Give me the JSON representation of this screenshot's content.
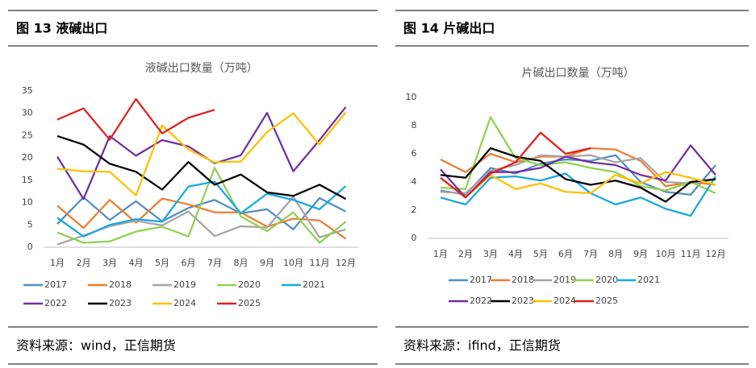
{
  "chart_data": [
    {
      "type": "line",
      "figure_title": "图 13  液碱出口",
      "title": "液碱出口数量（万吨）",
      "source": "资料来源：wind，正信期货",
      "categories": [
        "1月",
        "2月",
        "3月",
        "4月",
        "5月",
        "6月",
        "7月",
        "8月",
        "9月",
        "10月",
        "11月",
        "12月"
      ],
      "ylim": [
        0,
        35
      ],
      "yticks": [
        0,
        5,
        10,
        15,
        20,
        25,
        30,
        35
      ],
      "grid": false,
      "series": [
        {
          "name": "2017",
          "color": "#4f8fc0",
          "values": [
            5.2,
            11.2,
            6.1,
            10.3,
            5.8,
            8.8,
            10.6,
            7.6,
            8.5,
            4,
            11,
            8
          ]
        },
        {
          "name": "2018",
          "color": "#ed7d31",
          "values": [
            9.3,
            4.3,
            10.6,
            5.5,
            10.9,
            9.6,
            7.8,
            7.8,
            4.6,
            6.4,
            6,
            1.9
          ]
        },
        {
          "name": "2019",
          "color": "#a5a5a5",
          "values": [
            0.6,
            2.6,
            4.7,
            5.9,
            4.9,
            8,
            2.5,
            4.7,
            4.4,
            11.3,
            2.2,
            4
          ]
        },
        {
          "name": "2020",
          "color": "#92d050",
          "values": [
            3.3,
            1,
            1.3,
            3.5,
            4.6,
            2.4,
            17.8,
            6.9,
            3.6,
            7.8,
            1,
            5.7
          ]
        },
        {
          "name": "2021",
          "color": "#17a9e1",
          "values": [
            6.6,
            2.4,
            5,
            6.3,
            5.7,
            13.6,
            14.7,
            7.6,
            12,
            10.6,
            8.5,
            13.7
          ]
        },
        {
          "name": "2022",
          "color": "#7030a0",
          "values": [
            20.3,
            10.8,
            24.9,
            20.5,
            24,
            22.6,
            18.8,
            20.6,
            30.1,
            17,
            24,
            31.4
          ]
        },
        {
          "name": "2023",
          "color": "#000000",
          "values": [
            24.9,
            23,
            18.7,
            16.9,
            12.9,
            19.1,
            14,
            16.3,
            12.3,
            11.5,
            14,
            10.8
          ]
        },
        {
          "name": "2024",
          "color": "#ffc000",
          "values": [
            17.6,
            17,
            16.9,
            11.6,
            27.3,
            21.9,
            19,
            19.2,
            25.8,
            30,
            23,
            30.2
          ]
        },
        {
          "name": "2025",
          "color": "#e02020",
          "values": [
            28.6,
            31.1,
            24.1,
            33.2,
            25.5,
            29,
            30.8,
            null,
            null,
            null,
            null,
            null
          ]
        }
      ]
    },
    {
      "type": "line",
      "figure_title": "图 14  片碱出口",
      "title": "片碱出口数量（万吨）",
      "source": "资料来源：ifind，正信期货",
      "categories": [
        "1月",
        "2月",
        "3月",
        "4月",
        "5月",
        "6月",
        "7月",
        "8月",
        "9月",
        "10月",
        "11月",
        "12月"
      ],
      "ylim": [
        0,
        10
      ],
      "yticks": [
        0,
        2,
        4,
        6,
        8,
        10
      ],
      "grid": false,
      "series": [
        {
          "name": "2017",
          "color": "#4f8fc0",
          "values": [
            3.4,
            3.1,
            5,
            4.6,
            5.3,
            5.6,
            5.5,
            5.9,
            4,
            3.3,
            3.1,
            5.2
          ]
        },
        {
          "name": "2018",
          "color": "#ed7d31",
          "values": [
            5.6,
            4.7,
            6,
            5.4,
            5.8,
            5.8,
            6.4,
            6.3,
            5.5,
            3.7,
            4,
            3.8
          ]
        },
        {
          "name": "2019",
          "color": "#a5a5a5",
          "values": [
            3.3,
            3.2,
            4.8,
            5.2,
            5.9,
            5.8,
            5.9,
            5.4,
            5.7,
            4,
            3.9,
            4.2
          ]
        },
        {
          "name": "2020",
          "color": "#92d050",
          "values": [
            3.6,
            3.5,
            8.6,
            5.7,
            5.2,
            5.4,
            5,
            4.7,
            3.7,
            3.4,
            4,
            3.2
          ]
        },
        {
          "name": "2021",
          "color": "#17a9e1",
          "values": [
            2.9,
            2.4,
            4.3,
            4.4,
            4.1,
            4.6,
            3.2,
            2.4,
            2.9,
            2.1,
            1.6,
            4.4
          ]
        },
        {
          "name": "2022",
          "color": "#7030a0",
          "values": [
            4.9,
            2.9,
            4.7,
            4.7,
            5,
            5.8,
            5.4,
            5.2,
            4.5,
            4.1,
            6.6,
            4.5
          ]
        },
        {
          "name": "2023",
          "color": "#000000",
          "values": [
            4.5,
            4.3,
            6.4,
            5.8,
            5.5,
            4.2,
            3.8,
            4.1,
            3.6,
            2.6,
            4,
            4.2
          ]
        },
        {
          "name": "2024",
          "color": "#ffc000",
          "values": [
            4.3,
            2.9,
            4.5,
            3.5,
            3.9,
            3.3,
            3.2,
            4.5,
            3.9,
            4.7,
            4.3,
            3.8
          ]
        },
        {
          "name": "2025",
          "color": "#e02020",
          "values": [
            4.3,
            2.9,
            4.6,
            5.4,
            7.5,
            6,
            6.4,
            null,
            null,
            null,
            null,
            null
          ]
        }
      ]
    }
  ]
}
